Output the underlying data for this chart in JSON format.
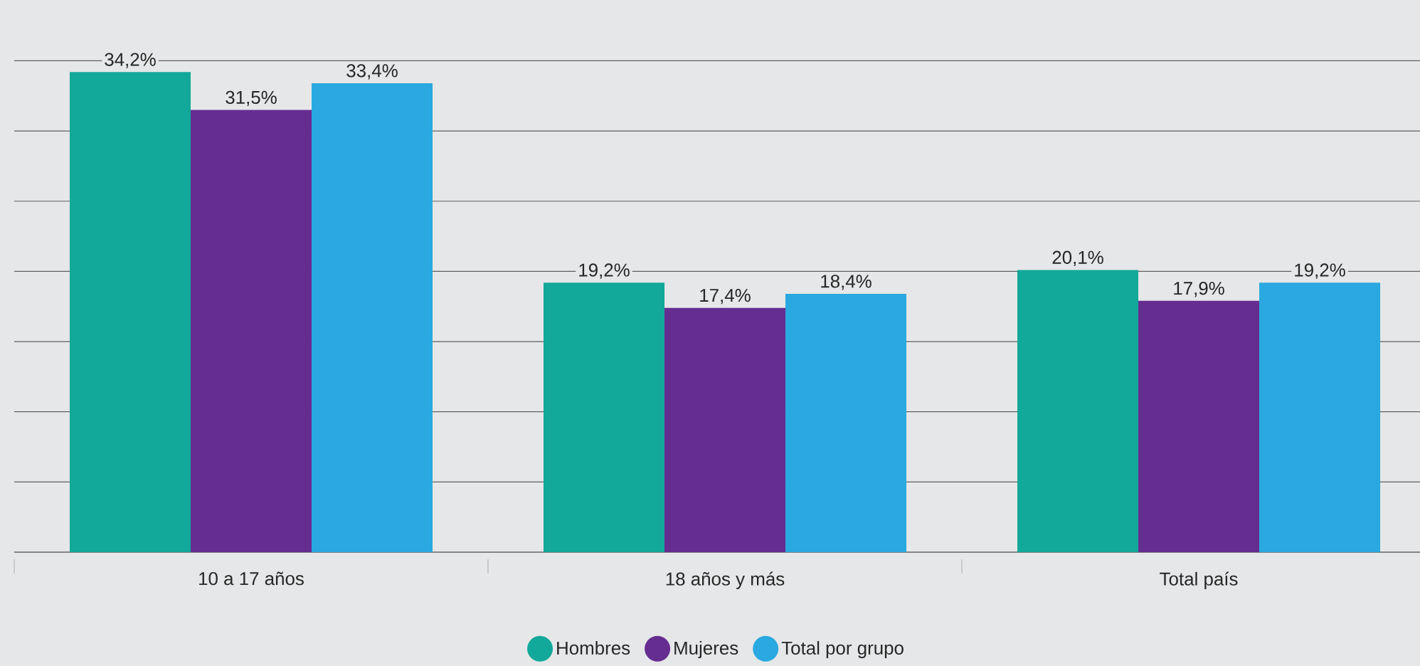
{
  "chart_data": {
    "type": "bar",
    "categories": [
      "10 a 17 años",
      "18 años y más",
      "Total país"
    ],
    "series": [
      {
        "name": "Hombres",
        "color": "#12a89a",
        "values": [
          34.2,
          19.2,
          20.1
        ],
        "value_labels": [
          "34,2%",
          "19,2%",
          "20,1%"
        ]
      },
      {
        "name": "Mujeres",
        "color": "#662d91",
        "values": [
          31.5,
          17.4,
          17.9
        ],
        "value_labels": [
          "31,5%",
          "17,4%",
          "17,9%"
        ]
      },
      {
        "name": "Total por grupo",
        "color": "#29a9e0",
        "values": [
          33.4,
          18.4,
          19.2
        ],
        "value_labels": [
          "33,4%",
          "18,4%",
          "19,2%"
        ]
      }
    ],
    "grid": "y",
    "legend": "bottom",
    "tick_labels": "x"
  }
}
